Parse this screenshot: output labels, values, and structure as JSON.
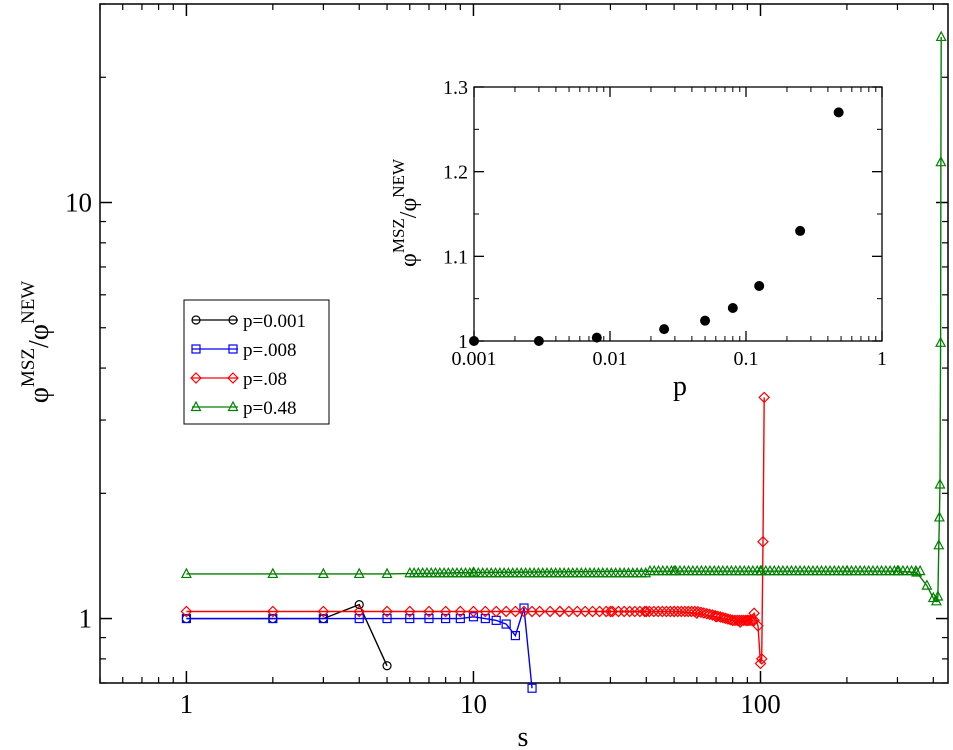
{
  "chart_data": [
    {
      "type": "line",
      "scale": "log-log",
      "xlabel": "s",
      "ylabel": {
        "base": "φ",
        "sup1": "MSZ",
        "sep": "/",
        "base2": "φ",
        "sup2": "NEW"
      },
      "xlim": [
        0.5,
        450
      ],
      "ylim": [
        0.7,
        30
      ],
      "xticks": [
        1,
        10,
        100
      ],
      "xtick_labels": [
        "1",
        "10",
        "100"
      ],
      "yticks": [
        1,
        10
      ],
      "ytick_labels": [
        "1",
        "10"
      ],
      "legend": {
        "position": "left-middle"
      },
      "series": [
        {
          "name": "p=0.001",
          "marker": "circle",
          "color": "#000000",
          "x": [
            1,
            2,
            3,
            4,
            5
          ],
          "y": [
            1.0,
            1.0,
            1.0,
            1.08,
            0.77
          ]
        },
        {
          "name": "p=.008",
          "marker": "square",
          "color": "#0000ff",
          "x": [
            1,
            2,
            3,
            4,
            5,
            6,
            7,
            8,
            9,
            10,
            11,
            12,
            13,
            14,
            15,
            16
          ],
          "y": [
            1.0,
            1.0,
            1.0,
            1.0,
            1.0,
            1.0,
            1.0,
            1.0,
            1.0,
            1.01,
            1.0,
            0.99,
            0.97,
            0.91,
            1.06,
            0.68
          ]
        },
        {
          "name": "p=.08",
          "marker": "diamond",
          "color": "#ff0000",
          "x": [
            1,
            2,
            3,
            4,
            5,
            6,
            7,
            8,
            9,
            10,
            11,
            12,
            13,
            14,
            15,
            16,
            20,
            30,
            40,
            50,
            60,
            70,
            80,
            85,
            90,
            95,
            98,
            100,
            101,
            102,
            103
          ],
          "y": [
            1.04,
            1.04,
            1.04,
            1.04,
            1.04,
            1.04,
            1.04,
            1.04,
            1.04,
            1.04,
            1.04,
            1.04,
            1.04,
            1.04,
            1.04,
            1.04,
            1.04,
            1.04,
            1.04,
            1.04,
            1.03,
            1.01,
            0.99,
            0.98,
            0.99,
            1.03,
            0.96,
            0.78,
            0.8,
            1.53,
            3.4
          ]
        },
        {
          "name": "p=0.48",
          "marker": "triangle",
          "color": "#008000",
          "x": [
            1,
            2,
            3,
            4,
            5,
            10,
            50,
            100,
            200,
            300,
            350,
            380,
            400,
            410,
            415,
            418,
            420,
            422,
            424,
            425,
            426
          ],
          "y": [
            1.28,
            1.28,
            1.28,
            1.28,
            1.28,
            1.29,
            1.3,
            1.3,
            1.3,
            1.3,
            1.29,
            1.2,
            1.12,
            1.1,
            1.13,
            1.5,
            1.75,
            2.1,
            4.6,
            12.5,
            25
          ]
        }
      ]
    },
    {
      "type": "scatter",
      "scale": "log-linear",
      "xlabel": "p",
      "ylabel": {
        "base": "φ",
        "sup1": "MSZ",
        "sep": "/",
        "base2": "φ",
        "sup2": "NEW"
      },
      "xlim": [
        0.001,
        1
      ],
      "ylim": [
        1.0,
        1.3
      ],
      "xticks": [
        0.001,
        0.01,
        0.1,
        1
      ],
      "xtick_labels": [
        "0.001",
        "0.01",
        "0.1",
        "1"
      ],
      "yticks": [
        1.0,
        1.1,
        1.2,
        1.3
      ],
      "ytick_labels": [
        "1",
        "1.1",
        "1.2",
        "1.3"
      ],
      "series": [
        {
          "name": "inset",
          "marker": "filled-circle",
          "color": "#000000",
          "x": [
            0.001,
            0.003,
            0.008,
            0.025,
            0.05,
            0.08,
            0.125,
            0.25,
            0.48
          ],
          "y": [
            1.0,
            1.0,
            1.004,
            1.014,
            1.024,
            1.039,
            1.065,
            1.13,
            1.27
          ]
        }
      ]
    }
  ]
}
